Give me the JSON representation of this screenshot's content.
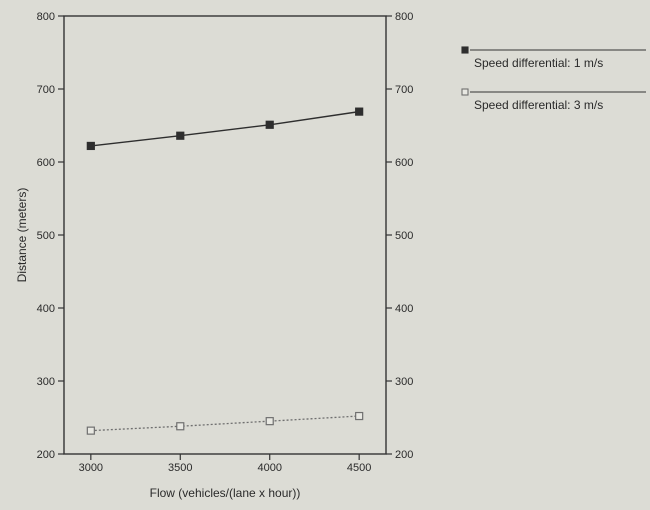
{
  "chart_data": {
    "type": "line",
    "title": "",
    "xlabel": "Flow (vehicles/(lane x hour))",
    "ylabel": "Distance (meters)",
    "x": [
      3000,
      3500,
      4000,
      4500
    ],
    "xticks": [
      "3000",
      "3500",
      "4000",
      "4500"
    ],
    "xlim": [
      2850,
      4650
    ],
    "ylim": [
      200,
      800
    ],
    "yticks": [
      "200",
      "300",
      "400",
      "500",
      "600",
      "700",
      "800"
    ],
    "right_axis_mirrors_left": true,
    "grid": false,
    "legend_position": "right, outside plot",
    "series": [
      {
        "name": "Speed differential: 1 m/s",
        "values": [
          622,
          636,
          651,
          669
        ],
        "marker": "filled-square",
        "line": "solid",
        "color": "#2e2e2e"
      },
      {
        "name": "Speed differential: 3 m/s",
        "values": [
          232,
          238,
          245,
          252
        ],
        "marker": "open-square",
        "line": "dotted",
        "color": "#6f6f6f"
      }
    ]
  }
}
